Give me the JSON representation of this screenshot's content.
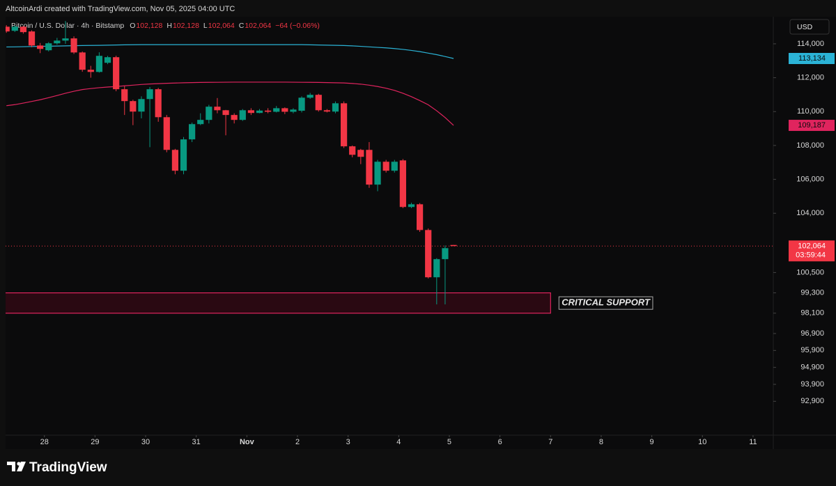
{
  "header": {
    "credit": "AltcoinArdi created with TradingView.com, Nov 05, 2025 04:00 UTC"
  },
  "footer": {
    "brand": "TradingView"
  },
  "chart_data": {
    "type": "candlestick",
    "title": "Bitcoin / U.S. Dollar · 4h · Bitstamp",
    "ohlc_legend": [
      {
        "key": "O",
        "value": "102,128"
      },
      {
        "key": "H",
        "value": "102,128"
      },
      {
        "key": "L",
        "value": "102,064"
      },
      {
        "key": "C",
        "value": "102,064"
      }
    ],
    "change": "−64 (−0.06%)",
    "currency": "USD",
    "up_color": "#089981",
    "down_color": "#f23645",
    "x": [
      -5,
      -4,
      -3,
      -2,
      -1,
      0,
      1,
      2,
      3,
      4,
      5,
      6,
      7,
      8,
      9,
      10,
      11,
      12,
      13,
      14,
      15,
      16,
      17,
      18,
      19,
      20,
      21,
      22,
      23,
      24,
      25,
      26,
      27,
      28,
      29,
      30,
      31,
      32,
      33,
      34,
      35,
      36,
      37,
      38,
      39,
      40,
      41,
      42,
      43,
      44,
      45,
      46,
      47,
      48
    ],
    "open": [
      115010,
      114770,
      115010,
      114730,
      113900,
      113620,
      114030,
      114190,
      114320,
      113490,
      112470,
      112340,
      112880,
      113210,
      111320,
      110620,
      110000,
      110740,
      111320,
      109670,
      107740,
      106510,
      108360,
      109260,
      109510,
      110290,
      110080,
      109800,
      109510,
      110080,
      109920,
      110060,
      109990,
      110200,
      109990,
      110050,
      110820,
      110990,
      110080,
      110000,
      110490,
      107950,
      107740,
      107740,
      105690,
      107040,
      106510,
      107120,
      104370,
      104530,
      103010,
      100220,
      101290,
      102128
    ],
    "high": [
      115100,
      115100,
      115050,
      114800,
      114050,
      114100,
      114350,
      115350,
      114440,
      113550,
      112700,
      113500,
      113290,
      113300,
      111500,
      110700,
      110900,
      111450,
      111400,
      109800,
      107800,
      108500,
      109350,
      109900,
      110400,
      110800,
      110100,
      109900,
      110150,
      110200,
      110150,
      110200,
      110330,
      110250,
      110200,
      110900,
      111100,
      111050,
      110150,
      110600,
      110600,
      108000,
      107800,
      108200,
      107150,
      107150,
      107150,
      107200,
      104620,
      104600,
      103100,
      101350,
      102100,
      102128
    ],
    "low": [
      114650,
      114700,
      114600,
      113800,
      113450,
      113550,
      113950,
      114000,
      113400,
      112350,
      112000,
      112300,
      112800,
      111200,
      109800,
      109200,
      109600,
      107900,
      109400,
      107600,
      106300,
      106300,
      108200,
      109200,
      109300,
      109900,
      108600,
      109300,
      109450,
      109800,
      109900,
      109900,
      109950,
      109850,
      109900,
      109950,
      110750,
      110000,
      109950,
      109900,
      107850,
      107300,
      106900,
      105500,
      105300,
      106400,
      106400,
      104300,
      104300,
      102900,
      100150,
      98620,
      98620,
      102064
    ],
    "close": [
      114730,
      115010,
      114690,
      113900,
      113700,
      114030,
      114190,
      114320,
      113490,
      112470,
      112340,
      113290,
      113210,
      111320,
      110620,
      110000,
      110740,
      111320,
      109670,
      107740,
      106510,
      108360,
      109260,
      109510,
      110290,
      110080,
      109800,
      109510,
      110080,
      109920,
      110060,
      109990,
      110200,
      109990,
      110120,
      110820,
      110990,
      110080,
      110000,
      110490,
      107950,
      107450,
      107330,
      105690,
      107040,
      106510,
      107040,
      104370,
      104530,
      103010,
      100220,
      101290,
      101940,
      102064
    ],
    "last_price_label": "102,064",
    "countdown": "03:59:44",
    "overlays": [
      {
        "color": "#2bb3d6",
        "last_label": "113,134",
        "values": [
          113815,
          113820,
          113830,
          113840,
          113850,
          113860,
          113870,
          113880,
          113890,
          113900,
          113905,
          113910,
          113920,
          113930,
          113940,
          113946,
          113950,
          113950,
          113950,
          113950,
          113950,
          113950,
          113950,
          113950,
          113950,
          113950,
          113950,
          113950,
          113950,
          113950,
          113950,
          113950,
          113950,
          113950,
          113950,
          113950,
          113940,
          113930,
          113920,
          113910,
          113900,
          113880,
          113850,
          113820,
          113790,
          113760,
          113720,
          113670,
          113610,
          113540,
          113450,
          113360,
          113250,
          113134
        ]
      },
      {
        "color": "#e0245e",
        "last_label": "109,187",
        "values": [
          110350,
          110410,
          110500,
          110600,
          110700,
          110820,
          110950,
          111080,
          111200,
          111300,
          111360,
          111410,
          111450,
          111480,
          111520,
          111560,
          111600,
          111630,
          111650,
          111670,
          111685,
          111700,
          111710,
          111720,
          111726,
          111730,
          111735,
          111740,
          111740,
          111740,
          111740,
          111740,
          111740,
          111740,
          111735,
          111730,
          111726,
          111720,
          111710,
          111700,
          111690,
          111660,
          111620,
          111560,
          111480,
          111380,
          111250,
          111080,
          110880,
          110650,
          110400,
          110050,
          109650,
          109187
        ]
      }
    ],
    "zones": [
      {
        "label": "CRITICAL SUPPORT",
        "x_range": [
          -5,
          60
        ],
        "y_range": [
          98100,
          99300
        ],
        "color": "#e0245e"
      }
    ],
    "xlim": [
      -4.6,
      86.4
    ],
    "xticks": [
      {
        "value": 0,
        "label": "28"
      },
      {
        "value": 6,
        "label": "29"
      },
      {
        "value": 12,
        "label": "30"
      },
      {
        "value": 18,
        "label": "31"
      },
      {
        "value": 24,
        "label": "Nov"
      },
      {
        "value": 30,
        "label": "2"
      },
      {
        "value": 36,
        "label": "3"
      },
      {
        "value": 42,
        "label": "4"
      },
      {
        "value": 48,
        "label": "5"
      },
      {
        "value": 54,
        "label": "6"
      },
      {
        "value": 60,
        "label": "7"
      },
      {
        "value": 66,
        "label": "8"
      },
      {
        "value": 72,
        "label": "9"
      },
      {
        "value": 78,
        "label": "10"
      },
      {
        "value": 84,
        "label": "11"
      }
    ],
    "ylim": [
      90900,
      115600
    ],
    "yticks": [
      {
        "value": 114000,
        "label": "114,000"
      },
      {
        "value": 112000,
        "label": "112,000"
      },
      {
        "value": 110000,
        "label": "110,000"
      },
      {
        "value": 108000,
        "label": "108,000"
      },
      {
        "value": 106000,
        "label": "106,000"
      },
      {
        "value": 104000,
        "label": "104,000"
      },
      {
        "value": 100500,
        "label": "100,500"
      },
      {
        "value": 99300,
        "label": "99,300"
      },
      {
        "value": 98100,
        "label": "98,100"
      },
      {
        "value": 96900,
        "label": "96,900"
      },
      {
        "value": 95900,
        "label": "95,900"
      },
      {
        "value": 94900,
        "label": "94,900"
      },
      {
        "value": 93900,
        "label": "93,900"
      },
      {
        "value": 92900,
        "label": "92,900"
      }
    ]
  }
}
